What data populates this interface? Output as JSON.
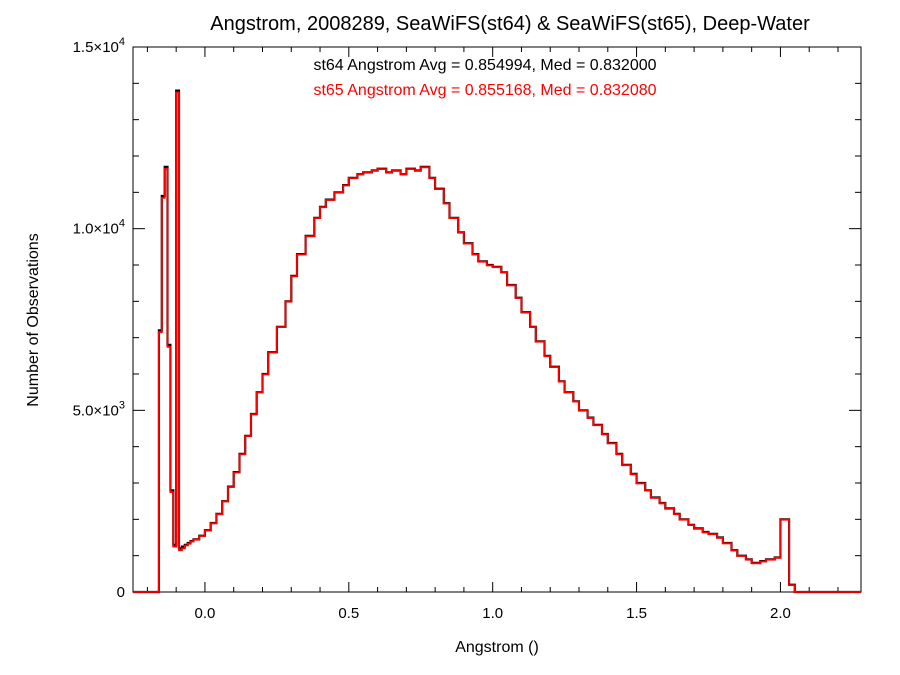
{
  "chart_data": {
    "type": "line",
    "step": true,
    "title": "Angstrom, 2008289, SeaWiFS(st64) & SeaWiFS(st65), Deep-Water",
    "xlabel": "Angstrom ()",
    "ylabel": "Number of Observations",
    "xlim": [
      -0.25,
      2.28
    ],
    "ylim": [
      0,
      15000
    ],
    "x_ticks": [
      {
        "value": 0.0,
        "label": "0.0"
      },
      {
        "value": 0.5,
        "label": "0.5"
      },
      {
        "value": 1.0,
        "label": "1.0"
      },
      {
        "value": 1.5,
        "label": "1.5"
      },
      {
        "value": 2.0,
        "label": "2.0"
      }
    ],
    "y_ticks": [
      {
        "value": 0,
        "mant": "0",
        "exp": ""
      },
      {
        "value": 5000,
        "mant": "5.0×10",
        "exp": "3"
      },
      {
        "value": 10000,
        "mant": "1.0×10",
        "exp": "4"
      },
      {
        "value": 15000,
        "mant": "1.5×10",
        "exp": "4"
      }
    ],
    "annotations": [
      {
        "text": "st64 Angstrom Avg = 0.854994, Med = 0.832000",
        "color": "#000000"
      },
      {
        "text": "st65 Angstrom Avg = 0.855168, Med = 0.832080",
        "color": "#ff0000"
      }
    ],
    "x": [
      -0.25,
      -0.17,
      -0.16,
      -0.15,
      -0.14,
      -0.13,
      -0.12,
      -0.11,
      -0.1,
      -0.09,
      -0.08,
      -0.07,
      -0.06,
      -0.05,
      -0.04,
      -0.02,
      0.0,
      0.02,
      0.04,
      0.06,
      0.08,
      0.1,
      0.12,
      0.14,
      0.16,
      0.18,
      0.2,
      0.22,
      0.25,
      0.28,
      0.3,
      0.32,
      0.35,
      0.38,
      0.4,
      0.42,
      0.45,
      0.48,
      0.5,
      0.53,
      0.55,
      0.58,
      0.6,
      0.63,
      0.65,
      0.68,
      0.7,
      0.73,
      0.75,
      0.78,
      0.8,
      0.83,
      0.85,
      0.88,
      0.9,
      0.93,
      0.95,
      0.98,
      1.0,
      1.03,
      1.05,
      1.08,
      1.1,
      1.13,
      1.15,
      1.18,
      1.2,
      1.23,
      1.25,
      1.28,
      1.3,
      1.33,
      1.35,
      1.38,
      1.4,
      1.43,
      1.45,
      1.48,
      1.5,
      1.53,
      1.55,
      1.58,
      1.6,
      1.63,
      1.65,
      1.68,
      1.7,
      1.73,
      1.75,
      1.78,
      1.8,
      1.83,
      1.85,
      1.88,
      1.9,
      1.93,
      1.95,
      1.98,
      2.0,
      2.03,
      2.05,
      2.08,
      2.1,
      2.12,
      2.13,
      2.14,
      2.15,
      2.28
    ],
    "series": [
      {
        "name": "st64",
        "color": "#000000",
        "values": [
          0,
          0,
          7200,
          10900,
          11700,
          6800,
          2800,
          1300,
          13800,
          1200,
          1250,
          1300,
          1350,
          1400,
          1450,
          1550,
          1700,
          1900,
          2150,
          2500,
          2900,
          3300,
          3800,
          4300,
          4900,
          5500,
          6000,
          6600,
          7300,
          8000,
          8700,
          9300,
          9800,
          10300,
          10600,
          10800,
          11000,
          11200,
          11400,
          11500,
          11550,
          11600,
          11650,
          11550,
          11600,
          11500,
          11650,
          11600,
          11700,
          11400,
          11100,
          10700,
          10300,
          9900,
          9600,
          9300,
          9100,
          9000,
          8950,
          8800,
          8450,
          8100,
          7700,
          7300,
          6900,
          6500,
          6200,
          5800,
          5500,
          5250,
          5000,
          4800,
          4600,
          4350,
          4100,
          3800,
          3500,
          3250,
          3000,
          2800,
          2600,
          2450,
          2300,
          2150,
          2000,
          1850,
          1750,
          1650,
          1600,
          1500,
          1350,
          1150,
          1000,
          900,
          800,
          850,
          900,
          950,
          2000,
          200,
          0,
          0,
          0,
          0,
          0,
          0,
          0,
          0
        ]
      },
      {
        "name": "st65",
        "color": "#ff0000",
        "values": [
          0,
          0,
          7150,
          10850,
          11650,
          6750,
          2750,
          1250,
          13750,
          1150,
          1200,
          1280,
          1330,
          1390,
          1440,
          1540,
          1690,
          1890,
          2140,
          2490,
          2890,
          3290,
          3790,
          4290,
          4890,
          5490,
          5990,
          6590,
          7290,
          7990,
          8690,
          9290,
          9790,
          10290,
          10590,
          10790,
          10990,
          11190,
          11390,
          11490,
          11540,
          11590,
          11640,
          11540,
          11590,
          11490,
          11640,
          11590,
          11690,
          11390,
          11090,
          10690,
          10290,
          9890,
          9590,
          9290,
          9090,
          8990,
          8940,
          8790,
          8440,
          8090,
          7690,
          7290,
          6890,
          6490,
          6190,
          5790,
          5490,
          5240,
          4990,
          4790,
          4590,
          4340,
          4090,
          3790,
          3490,
          3240,
          2990,
          2790,
          2590,
          2440,
          2290,
          2140,
          1990,
          1840,
          1740,
          1640,
          1590,
          1490,
          1340,
          1140,
          990,
          890,
          790,
          840,
          890,
          940,
          1990,
          190,
          0,
          0,
          0,
          0,
          0,
          0,
          0,
          0
        ]
      }
    ]
  }
}
